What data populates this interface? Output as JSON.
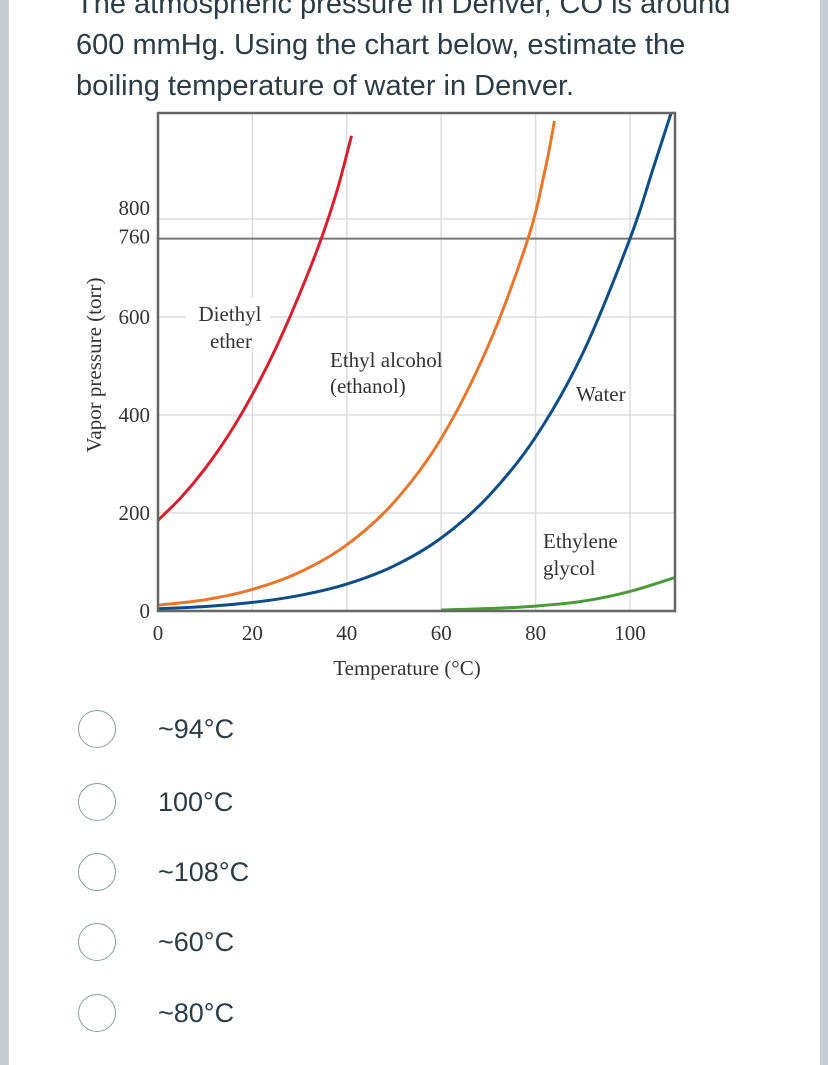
{
  "question": {
    "lines": [
      "The atmospheric pressure in Denver, CO is around",
      "600 mmHg.  Using the chart below, estimate the",
      "boiling temperature of water in Denver."
    ]
  },
  "chart_data": {
    "type": "line",
    "xlabel": "Temperature (°C)",
    "ylabel": "Vapor pressure (torr)",
    "xlim": [
      0,
      110
    ],
    "ylim": [
      0,
      1015
    ],
    "xticks": [
      "0",
      "20",
      "40",
      "60",
      "80",
      "100"
    ],
    "yticks": [
      "0",
      "200",
      "400",
      "600",
      "760",
      "800"
    ],
    "grid": true,
    "reference_line": 760,
    "series": [
      {
        "name": "Diethyl ether",
        "color": "#d6202f",
        "x": [
          0,
          5,
          10,
          15,
          20,
          25,
          30,
          34.6,
          38,
          41
        ],
        "y": [
          185,
          233,
          291,
          360,
          442,
          537,
          647,
          760,
          860,
          970
        ]
      },
      {
        "name": "Ethyl alcohol (ethanol)",
        "color": "#e8772e",
        "x": [
          0,
          10,
          20,
          30,
          40,
          50,
          60,
          70,
          78.4,
          82,
          84
        ],
        "y": [
          12,
          23,
          44,
          79,
          135,
          222,
          352,
          542,
          760,
          900,
          1000
        ]
      },
      {
        "name": "Water",
        "color": "#0e4d85",
        "x": [
          0,
          10,
          20,
          30,
          40,
          50,
          60,
          70,
          80,
          90,
          100,
          105,
          109.5
        ],
        "y": [
          4.6,
          9.2,
          17.5,
          31.8,
          55,
          92,
          149,
          234,
          355,
          526,
          760,
          906,
          1040
        ]
      },
      {
        "name": "Ethylene glycol",
        "color": "#4a9a3a",
        "x": [
          60,
          70,
          80,
          90,
          100,
          110
        ],
        "y": [
          2,
          5,
          10,
          20,
          40,
          70
        ]
      }
    ],
    "annotations": {
      "ether": [
        "Diethyl",
        "ether"
      ],
      "ethanol": [
        "Ethyl alcohol",
        "(ethanol)"
      ],
      "water": [
        "Water"
      ],
      "glycol": [
        "Ethylene",
        "glycol"
      ]
    }
  },
  "options": [
    {
      "label": "~94°C"
    },
    {
      "label": "100°C"
    },
    {
      "label": "~108°C"
    },
    {
      "label": "~60°C"
    },
    {
      "label": "~80°C"
    }
  ]
}
